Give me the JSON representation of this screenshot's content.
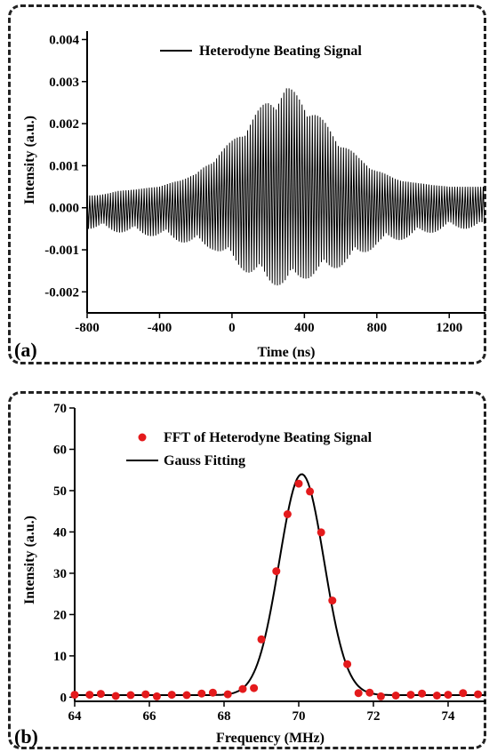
{
  "chart_data": [
    {
      "type": "line",
      "panel_label": "(a)",
      "xlabel": "Time (ns)",
      "ylabel": "Intensity (a.u.)",
      "xlim": [
        -800,
        1400
      ],
      "ylim": [
        -0.0025,
        0.0042
      ],
      "xticks": [
        -800,
        -400,
        0,
        400,
        800,
        1200
      ],
      "xtick_labels": [
        "-800",
        "-400",
        "0",
        "400",
        "800",
        "1200"
      ],
      "yticks": [
        -0.002,
        -0.001,
        0.0,
        0.001,
        0.002,
        0.003,
        0.004
      ],
      "ytick_labels": [
        "-0.002",
        "-0.001",
        "0.000",
        "0.001",
        "0.002",
        "0.003",
        "0.004"
      ],
      "legend_position": "top-center",
      "series": [
        {
          "name": "Heterodyne Beating Signal",
          "color": "#000000",
          "oscillation_period_ns": 14.3,
          "carrier_mean": 0.0005,
          "envelope": {
            "t": [
              -800,
              -600,
              -400,
              -200,
              -100,
              0,
              100,
              200,
              300,
              400,
              500,
              600,
              700,
              800,
              900,
              1000,
              1200,
              1400
            ],
            "upper": [
              0.00025,
              0.0004,
              0.0005,
              0.0008,
              0.0012,
              0.0016,
              0.0021,
              0.0026,
              0.0029,
              0.0026,
              0.0021,
              0.0016,
              0.0012,
              0.0009,
              0.0007,
              0.0006,
              0.0005,
              0.0005
            ],
            "lower": [
              -0.0005,
              -0.0006,
              -0.0007,
              -0.0009,
              -0.001,
              -0.0013,
              -0.0016,
              -0.0018,
              -0.0019,
              -0.0017,
              -0.0016,
              -0.0014,
              -0.0012,
              -0.0009,
              -0.0008,
              -0.0007,
              -0.0005,
              -0.0005
            ]
          }
        }
      ]
    },
    {
      "type": "scatter",
      "panel_label": "(b)",
      "xlabel": "Frequency (MHz)",
      "ylabel": "Intensity (a.u.)",
      "xlim": [
        64,
        75
      ],
      "ylim": [
        -1,
        70
      ],
      "xticks": [
        64,
        66,
        68,
        70,
        72,
        74
      ],
      "xtick_labels": [
        "64",
        "66",
        "68",
        "70",
        "72",
        "74"
      ],
      "yticks": [
        0,
        10,
        20,
        30,
        40,
        50,
        60,
        70
      ],
      "ytick_labels": [
        "0",
        "10",
        "20",
        "30",
        "40",
        "50",
        "60",
        "70"
      ],
      "legend_position": "top-center",
      "series": [
        {
          "name": "FFT of Heterodyne Beating Signal",
          "color": "#e41a1c",
          "marker": "circle",
          "x": [
            64.0,
            64.4,
            64.7,
            65.1,
            65.5,
            65.9,
            66.2,
            66.6,
            67.0,
            67.4,
            67.7,
            68.1,
            68.5,
            68.8,
            69.0,
            69.4,
            69.7,
            70.0,
            70.3,
            70.6,
            70.9,
            71.3,
            71.6,
            71.9,
            72.2,
            72.6,
            73.0,
            73.3,
            73.7,
            74.0,
            74.4,
            74.8
          ],
          "y": [
            0.6,
            0.6,
            0.8,
            0.3,
            0.5,
            0.7,
            0.2,
            0.6,
            0.5,
            0.9,
            1.1,
            0.7,
            2.0,
            2.2,
            14.0,
            30.5,
            44.3,
            51.7,
            49.8,
            39.9,
            23.4,
            8.0,
            1.0,
            1.1,
            0.2,
            0.4,
            0.6,
            0.9,
            0.4,
            0.6,
            1.0,
            0.7
          ]
        },
        {
          "name": "Gauss Fitting",
          "color": "#000000",
          "gauss": {
            "y0": 0.5,
            "A": 53.5,
            "xc": 70.08,
            "sigma": 0.6
          }
        }
      ]
    }
  ]
}
